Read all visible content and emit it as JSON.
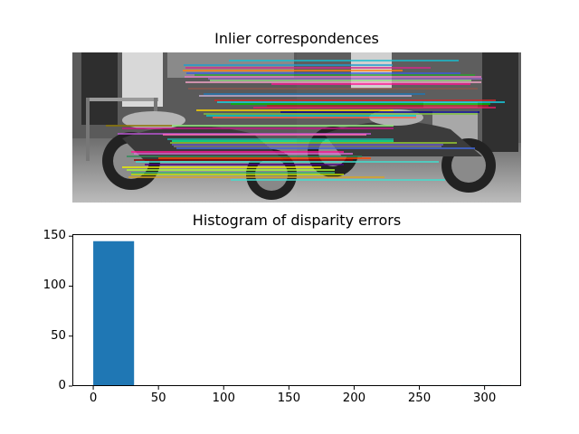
{
  "figure": {
    "subplot1_title": "Inlier correspondences",
    "subplot2_title": "Histogram of disparity errors"
  },
  "chart_data": [
    {
      "type": "image",
      "title": "Inlier correspondences",
      "description": "Two grayscale motorcycle images side by side (left and right stereo views) with colored horizontal lines connecting matched inlier keypoints",
      "num_panels": 2,
      "line_direction": "horizontal"
    },
    {
      "type": "bar",
      "title": "Histogram of disparity errors",
      "xlabel": "",
      "ylabel": "",
      "bins": [
        0,
        31.3,
        62.6,
        93.9,
        125.2,
        156.5,
        187.8,
        219.1,
        250.4,
        281.7,
        313.0
      ],
      "values": [
        145,
        0,
        0,
        0,
        0,
        0,
        0,
        0,
        0,
        1
      ],
      "color": "#1f77b4",
      "xlim": [
        -16,
        328
      ],
      "ylim": [
        0,
        152
      ],
      "xticks": [
        "0",
        "50",
        "100",
        "150",
        "200",
        "250",
        "300"
      ],
      "yticks": [
        "0",
        "50",
        "100",
        "150"
      ],
      "grid": false,
      "legend": null
    }
  ]
}
